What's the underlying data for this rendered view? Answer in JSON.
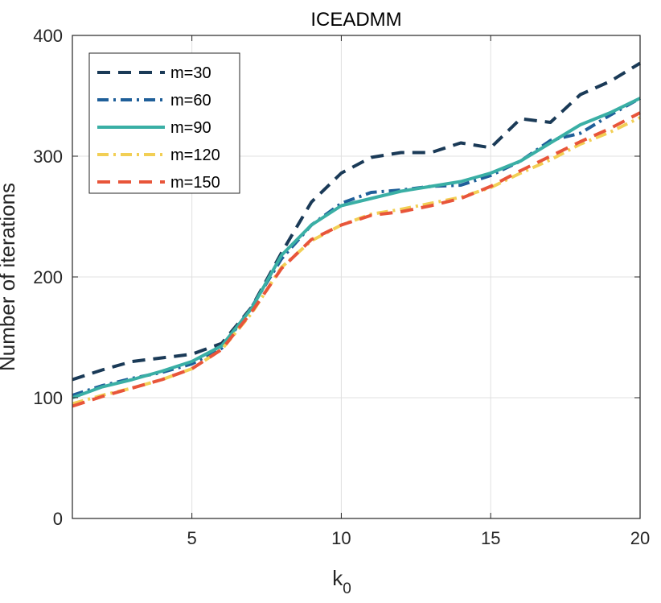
{
  "chart_data": {
    "type": "line",
    "title": "ICEADMM",
    "xlabel": "k",
    "xlabel_sub": "0",
    "ylabel": "Number of iterations",
    "xlim": [
      1,
      20
    ],
    "ylim": [
      0,
      400
    ],
    "xticks": [
      5,
      10,
      15,
      20
    ],
    "yticks": [
      0,
      100,
      200,
      300,
      400
    ],
    "grid": true,
    "legend_position": "top-left",
    "x": [
      1,
      2,
      3,
      4,
      5,
      6,
      7,
      8,
      9,
      10,
      11,
      12,
      13,
      14,
      15,
      16,
      17,
      18,
      19,
      20
    ],
    "series": [
      {
        "name": "m=30",
        "color": "#1a3a57",
        "style": "dashed",
        "values": [
          115,
          123,
          130,
          133,
          136,
          145,
          175,
          220,
          262,
          286,
          299,
          303,
          303,
          311,
          307,
          331,
          328,
          351,
          362,
          377
        ]
      },
      {
        "name": "m=60",
        "color": "#1f5f99",
        "style": "dashdot",
        "values": [
          102,
          110,
          116,
          121,
          128,
          141,
          175,
          215,
          243,
          261,
          270,
          272,
          275,
          276,
          284,
          296,
          313,
          319,
          334,
          348
        ]
      },
      {
        "name": "m=90",
        "color": "#3aafa5",
        "style": "solid",
        "values": [
          100,
          109,
          115,
          122,
          130,
          143,
          174,
          218,
          243,
          259,
          265,
          271,
          275,
          279,
          286,
          296,
          311,
          326,
          336,
          348
        ]
      },
      {
        "name": "m=120",
        "color": "#f2cf55",
        "style": "dashdot",
        "values": [
          95,
          102,
          108,
          115,
          124,
          140,
          170,
          208,
          230,
          243,
          252,
          256,
          261,
          266,
          274,
          286,
          297,
          310,
          320,
          332
        ]
      },
      {
        "name": "m=150",
        "color": "#e8553a",
        "style": "dashed",
        "values": [
          93,
          101,
          108,
          115,
          124,
          140,
          171,
          207,
          231,
          243,
          251,
          254,
          259,
          265,
          275,
          288,
          300,
          312,
          323,
          336
        ]
      }
    ]
  }
}
